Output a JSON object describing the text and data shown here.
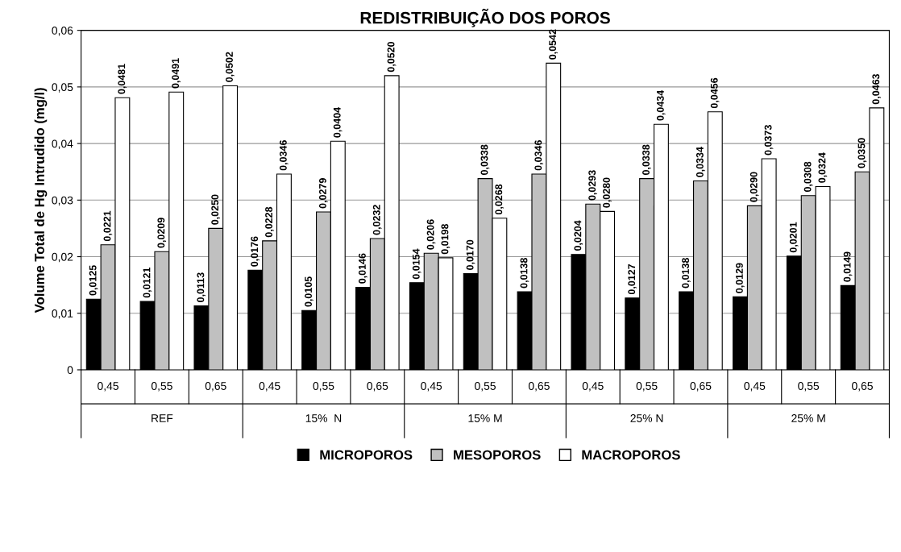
{
  "chart_data": {
    "type": "bar",
    "title": "REDISTRIBUIÇÃO DOS POROS",
    "ylabel": "Volume Total de Hg Intrudido (mg/l)",
    "categories": [
      "0,45",
      "0,55",
      "0,65",
      "0,45",
      "0,55",
      "0,65",
      "0,45",
      "0,55",
      "0,65",
      "0,45",
      "0,55",
      "0,65",
      "0,45",
      "0,55",
      "0,65"
    ],
    "annotations": [
      "REF",
      "15%  N",
      "15% M",
      "25% N",
      "25% M"
    ],
    "series": [
      {
        "name": "MICROPOROS",
        "color": "#000000",
        "values": [
          0.0125,
          0.0121,
          0.0113,
          0.0176,
          0.0105,
          0.0146,
          0.0154,
          0.017,
          0.0138,
          0.0204,
          0.0127,
          0.0138,
          0.0129,
          0.0201,
          0.0149
        ],
        "value_labels": [
          "0,0125",
          "0,0121",
          "0,0113",
          "0,0176",
          "0,0105",
          "0,0146",
          "0,0154",
          "0,0170",
          "0,0138",
          "0,0204",
          "0,0127",
          "0,0138",
          "0,0129",
          "0,0201",
          "0,0149"
        ]
      },
      {
        "name": "MESOPOROS",
        "color": "#c0c0c0",
        "values": [
          0.0221,
          0.0209,
          0.025,
          0.0228,
          0.0279,
          0.0232,
          0.0206,
          0.0338,
          0.0346,
          0.0293,
          0.0338,
          0.0334,
          0.029,
          0.0308,
          0.035
        ],
        "value_labels": [
          "0,0221",
          "0,0209",
          "0,0250",
          "0,0228",
          "0,0279",
          "0,0232",
          "0,0206",
          "0,0338",
          "0,0346",
          "0,0293",
          "0,0338",
          "0,0334",
          "0,0290",
          "0,0308",
          "0,0350"
        ]
      },
      {
        "name": "MACROPOROS",
        "color": "#ffffff",
        "values": [
          0.0481,
          0.0491,
          0.0502,
          0.0346,
          0.0404,
          0.052,
          0.0198,
          0.0268,
          0.0542,
          0.028,
          0.0434,
          0.0456,
          0.0373,
          0.0324,
          0.0463
        ],
        "value_labels": [
          "0,0481",
          "0,0491",
          "0,0502",
          "0,0346",
          "0,0404",
          "0,0520",
          "0,0198",
          "0,0268",
          "0,0542",
          "0,0280",
          "0,0434",
          "0,0456",
          "0,0373",
          "0,0324",
          "0,0463"
        ]
      }
    ],
    "ylim": [
      0,
      0.06
    ],
    "yticks": [
      0,
      {
        "value": 0.01,
        "label": "0,01"
      },
      {
        "value": 0.02,
        "label": "0,02"
      },
      {
        "value": 0.03,
        "label": "0,03"
      },
      {
        "value": 0.04,
        "label": "0,04"
      },
      {
        "value": 0.05,
        "label": "0,05"
      },
      {
        "value": 0.06,
        "label": "0,06"
      }
    ],
    "grid": "y",
    "legend": "bottom"
  }
}
